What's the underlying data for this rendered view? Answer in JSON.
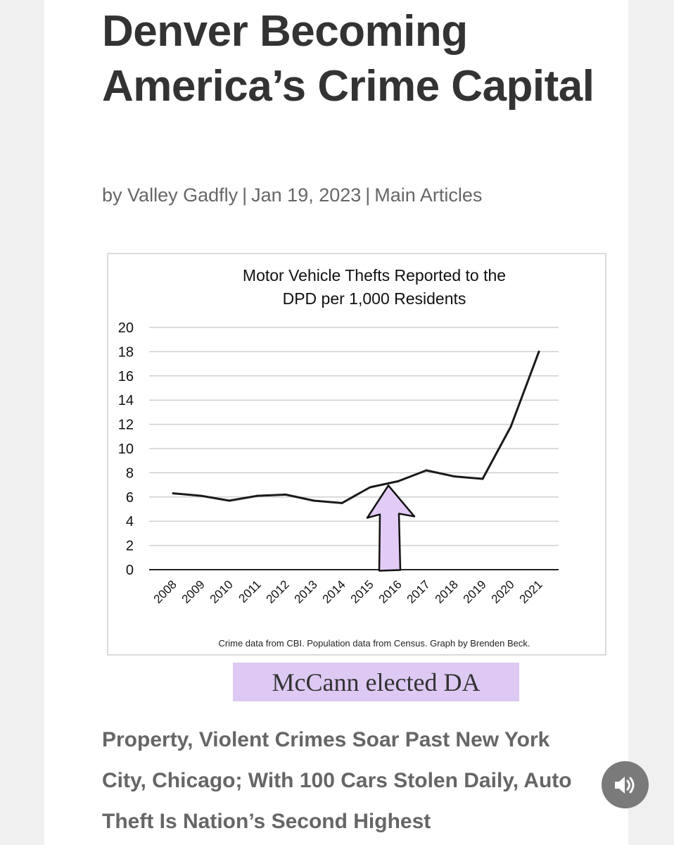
{
  "article": {
    "title": "Denver Becoming America’s Crime Capital",
    "byline": {
      "prefix": "by",
      "author": "Valley Gadfly",
      "separator": "|",
      "date": "Jan 19, 2023",
      "category": "Main Articles"
    },
    "caption": "McCann elected DA",
    "subheading": "Property, Violent Crimes Soar Past New York City, Chicago; With 100 Cars Stolen Daily, Auto Theft Is Nation’s Second Highest"
  },
  "audio_button": {
    "icon": "speaker-icon"
  },
  "colors": {
    "title": "#333333",
    "byline": "#666666",
    "caption_highlight": "#ddc9f3",
    "arrow_fill": "#e2ccf7",
    "line": "#1a1a1a",
    "audio_button": "#7a7a7a"
  },
  "chart_data": {
    "type": "line",
    "title": "Motor Vehicle Thefts Reported to the DPD per 1,000 Residents",
    "title_lines": [
      "Motor Vehicle Thefts Reported to the",
      "DPD per 1,000 Residents"
    ],
    "xlabel": "",
    "ylabel": "",
    "categories": [
      "2008",
      "2009",
      "2010",
      "2011",
      "2012",
      "2013",
      "2014",
      "2015",
      "2016",
      "2017",
      "2018",
      "2019",
      "2020",
      "2021"
    ],
    "series": [
      {
        "values": [
          6.3,
          6.1,
          5.7,
          6.1,
          6.2,
          5.7,
          5.5,
          6.8,
          7.3,
          8.2,
          7.7,
          7.5,
          11.8,
          18.0
        ]
      }
    ],
    "ylim": [
      0,
      20
    ],
    "yticks": [
      0,
      2,
      4,
      6,
      8,
      10,
      12,
      14,
      16,
      18,
      20
    ],
    "grid": true,
    "legend": "none",
    "source_note": "Crime data from CBI. Population data from Census. Graph by Brenden Beck.",
    "annotation": {
      "type": "arrow",
      "points_to": "2016"
    }
  }
}
